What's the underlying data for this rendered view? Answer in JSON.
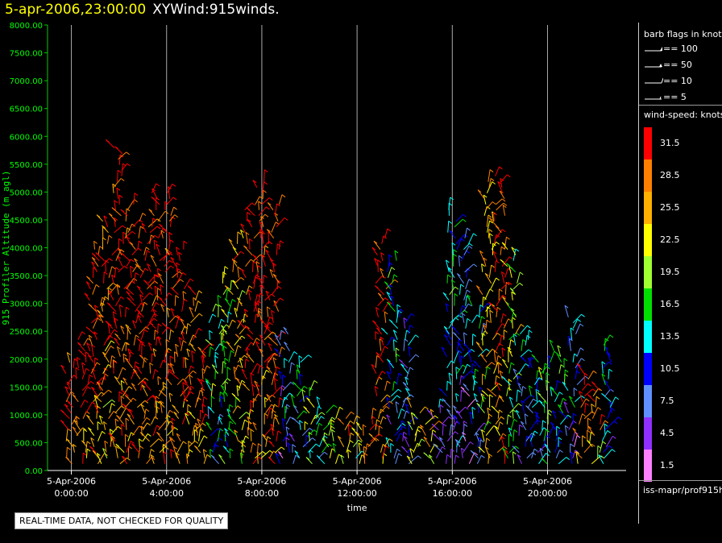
{
  "header": {
    "timestamp": "5-apr-2006,23:00:00",
    "product": "XYWind:915winds."
  },
  "legend": {
    "barb_title": "barb flags in knots",
    "barb_items": [
      {
        "label": "== 100"
      },
      {
        "label": "== 50"
      },
      {
        "label": "== 10"
      },
      {
        "label": "== 5"
      }
    ],
    "speed_title": "wind-speed: knots",
    "colors": [
      {
        "label": "31.5",
        "color": "#ff0000"
      },
      {
        "label": "28.5",
        "color": "#ff8000"
      },
      {
        "label": "25.5",
        "color": "#ffb000"
      },
      {
        "label": "22.5",
        "color": "#ffff00"
      },
      {
        "label": "19.5",
        "color": "#a0ff30"
      },
      {
        "label": "16.5",
        "color": "#00e000"
      },
      {
        "label": "13.5",
        "color": "#00ffff"
      },
      {
        "label": "10.5",
        "color": "#0000ff"
      },
      {
        "label": "7.5",
        "color": "#6090ff"
      },
      {
        "label": "4.5",
        "color": "#9030ff"
      },
      {
        "label": "1.5",
        "color": "#ff80ff"
      }
    ],
    "source": "iss-mapr/prof915h"
  },
  "notice": "REAL-TIME DATA, NOT CHECKED FOR QUALITY",
  "chart_data": {
    "type": "scatter",
    "title": "",
    "xlabel": "time",
    "ylabel": "915 Profiler Altitude (m agl)",
    "ylim": [
      0,
      8000
    ],
    "yticks": [
      "0.00",
      "500.00",
      "1000.00",
      "1500.00",
      "2000.00",
      "2500.00",
      "3000.00",
      "3500.00",
      "4000.00",
      "4500.00",
      "5000.00",
      "5500.00",
      "6000.00",
      "6500.00",
      "7000.00",
      "7500.00",
      "8000.00"
    ],
    "xticks": [
      {
        "date": "5-Apr-2006",
        "time": "0:00:00",
        "hour": 0
      },
      {
        "date": "5-Apr-2006",
        "time": "4:00:00",
        "hour": 4
      },
      {
        "date": "5-Apr-2006",
        "time": "8:00:00",
        "hour": 8
      },
      {
        "date": "5-Apr-2006",
        "time": "12:00:00",
        "hour": 12
      },
      {
        "date": "5-Apr-2006",
        "time": "16:00:00",
        "hour": 16
      },
      {
        "date": "5-Apr-2006",
        "time": "20:00:00",
        "hour": 20
      }
    ],
    "xlim_hours": [
      -1.0,
      23.3
    ],
    "grid": "vertical lines at tick hours",
    "series": [
      {
        "name": "wind barbs",
        "points": [
          {
            "hour": 0.0,
            "top_m": 2000,
            "speed_kt": 31.5
          },
          {
            "hour": 0.5,
            "top_m": 2400,
            "speed_kt": 31.5
          },
          {
            "hour": 1.0,
            "top_m": 4000,
            "speed_kt": 31.5
          },
          {
            "hour": 1.5,
            "top_m": 4500,
            "speed_kt": 28.5
          },
          {
            "hour": 2.0,
            "top_m": 5800,
            "speed_kt": 31.5
          },
          {
            "hour": 2.5,
            "top_m": 4800,
            "speed_kt": 31.5
          },
          {
            "hour": 3.0,
            "top_m": 4500,
            "speed_kt": 31.5
          },
          {
            "hour": 3.5,
            "top_m": 5000,
            "speed_kt": 31.5
          },
          {
            "hour": 4.0,
            "top_m": 5000,
            "speed_kt": 31.5
          },
          {
            "hour": 4.5,
            "top_m": 4000,
            "speed_kt": 31.5
          },
          {
            "hour": 5.0,
            "top_m": 3200,
            "speed_kt": 28.5
          },
          {
            "hour": 5.5,
            "top_m": 2200,
            "speed_kt": 31.5
          },
          {
            "hour": 6.0,
            "top_m": 3000,
            "speed_kt": 16.5
          },
          {
            "hour": 6.5,
            "top_m": 3500,
            "speed_kt": 19.5
          },
          {
            "hour": 7.0,
            "top_m": 4200,
            "speed_kt": 25.5
          },
          {
            "hour": 7.5,
            "top_m": 4800,
            "speed_kt": 31.5
          },
          {
            "hour": 8.0,
            "top_m": 5200,
            "speed_kt": 31.5
          },
          {
            "hour": 8.5,
            "top_m": 4800,
            "speed_kt": 31.5
          },
          {
            "hour": 9.0,
            "top_m": 2500,
            "speed_kt": 10.5
          },
          {
            "hour": 9.5,
            "top_m": 2000,
            "speed_kt": 13.5
          },
          {
            "hour": 10.0,
            "top_m": 1500,
            "speed_kt": 19.5
          },
          {
            "hour": 10.5,
            "top_m": 1200,
            "speed_kt": 16.5
          },
          {
            "hour": 11.0,
            "top_m": 1000,
            "speed_kt": 22.5
          },
          {
            "hour": 11.5,
            "top_m": 1000,
            "speed_kt": 25.5
          },
          {
            "hour": 12.0,
            "top_m": 900,
            "speed_kt": 22.5
          },
          {
            "hour": 12.5,
            "top_m": 1000,
            "speed_kt": 31.5
          },
          {
            "hour": 13.0,
            "top_m": 4200,
            "speed_kt": 31.5
          },
          {
            "hour": 13.5,
            "top_m": 3800,
            "speed_kt": 13.5
          },
          {
            "hour": 14.0,
            "top_m": 2800,
            "speed_kt": 10.5
          },
          {
            "hour": 14.5,
            "top_m": 1200,
            "speed_kt": 22.5
          },
          {
            "hour": 15.0,
            "top_m": 1000,
            "speed_kt": 25.5
          },
          {
            "hour": 15.5,
            "top_m": 1200,
            "speed_kt": 7.5
          },
          {
            "hour": 16.0,
            "top_m": 4700,
            "speed_kt": 13.5
          },
          {
            "hour": 16.5,
            "top_m": 4200,
            "speed_kt": 10.5
          },
          {
            "hour": 17.0,
            "top_m": 3000,
            "speed_kt": 13.5
          },
          {
            "hour": 17.5,
            "top_m": 5200,
            "speed_kt": 25.5
          },
          {
            "hour": 18.0,
            "top_m": 5300,
            "speed_kt": 31.5
          },
          {
            "hour": 18.5,
            "top_m": 4000,
            "speed_kt": 19.5
          },
          {
            "hour": 19.0,
            "top_m": 2500,
            "speed_kt": 10.5
          },
          {
            "hour": 19.5,
            "top_m": 2000,
            "speed_kt": 13.5
          },
          {
            "hour": 20.0,
            "top_m": 2000,
            "speed_kt": 16.5
          },
          {
            "hour": 20.5,
            "top_m": 2200,
            "speed_kt": 13.5
          },
          {
            "hour": 21.0,
            "top_m": 2800,
            "speed_kt": 10.5
          },
          {
            "hour": 21.5,
            "top_m": 1800,
            "speed_kt": 31.5
          },
          {
            "hour": 22.0,
            "top_m": 1500,
            "speed_kt": 28.5
          },
          {
            "hour": 22.5,
            "top_m": 2300,
            "speed_kt": 13.5
          }
        ]
      }
    ]
  }
}
